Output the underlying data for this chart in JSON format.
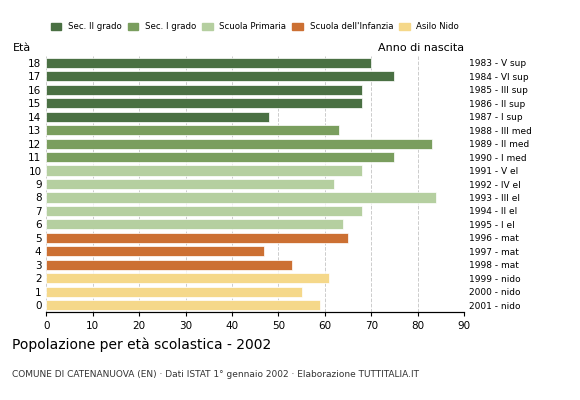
{
  "ages": [
    18,
    17,
    16,
    15,
    14,
    13,
    12,
    11,
    10,
    9,
    8,
    7,
    6,
    5,
    4,
    3,
    2,
    1,
    0
  ],
  "values": [
    70,
    75,
    68,
    68,
    48,
    63,
    83,
    75,
    68,
    62,
    84,
    68,
    64,
    65,
    47,
    53,
    61,
    55,
    59
  ],
  "anno_nascita": [
    "1983 - V sup",
    "1984 - VI sup",
    "1985 - III sup",
    "1986 - II sup",
    "1987 - I sup",
    "1988 - III med",
    "1989 - II med",
    "1990 - I med",
    "1991 - V el",
    "1992 - IV el",
    "1993 - III el",
    "1994 - II el",
    "1995 - I el",
    "1996 - mat",
    "1997 - mat",
    "1998 - mat",
    "1999 - nido",
    "2000 - nido",
    "2001 - nido"
  ],
  "colors": [
    "#4a7043",
    "#4a7043",
    "#4a7043",
    "#4a7043",
    "#4a7043",
    "#7a9e5e",
    "#7a9e5e",
    "#7a9e5e",
    "#b5cfa0",
    "#b5cfa0",
    "#b5cfa0",
    "#b5cfa0",
    "#b5cfa0",
    "#cc7033",
    "#cc7033",
    "#cc7033",
    "#f5d88a",
    "#f5d88a",
    "#f5d88a"
  ],
  "legend_labels": [
    "Sec. II grado",
    "Sec. I grado",
    "Scuola Primaria",
    "Scuola dell'Infanzia",
    "Asilo Nido"
  ],
  "legend_colors": [
    "#4a7043",
    "#7a9e5e",
    "#b5cfa0",
    "#cc7033",
    "#f5d88a"
  ],
  "title": "Popolazione per età scolastica - 2002",
  "subtitle": "COMUNE DI CATENANUOVA (EN) · Dati ISTAT 1° gennaio 2002 · Elaborazione TUTTITALIA.IT",
  "ylabel_left": "Età",
  "ylabel_right": "Anno di nascita",
  "xlim": [
    0,
    90
  ],
  "xticks": [
    0,
    10,
    20,
    30,
    40,
    50,
    60,
    70,
    80,
    90
  ],
  "bg_color": "#ffffff",
  "bar_height": 0.75,
  "grid_color": "#cccccc"
}
